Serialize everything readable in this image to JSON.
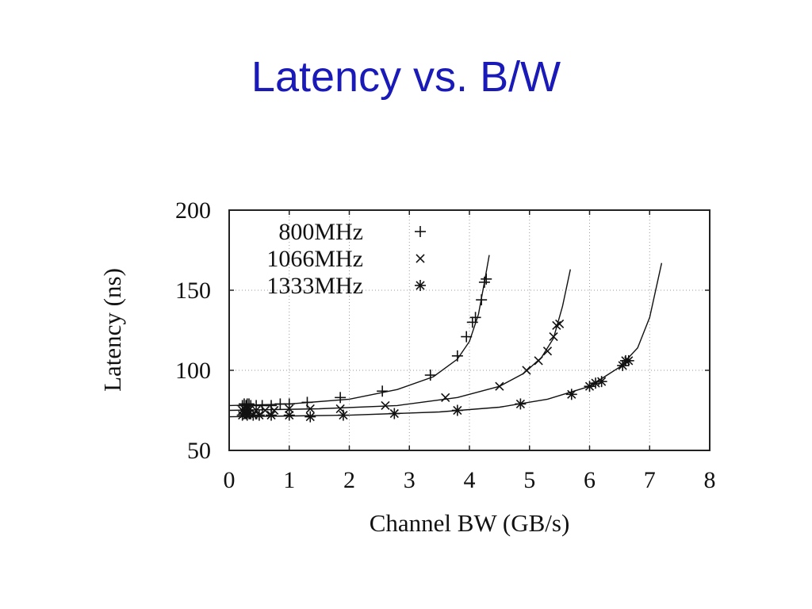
{
  "slide": {
    "title": "Latency vs. B/W",
    "title_color": "#1a1ab8"
  },
  "chart_data": {
    "type": "scatter",
    "xlabel": "Channel BW (GB/s)",
    "ylabel": "Latency (ns)",
    "xlim": [
      0,
      8
    ],
    "ylim": [
      50,
      200
    ],
    "x_ticks": [
      "0",
      "1",
      "2",
      "3",
      "4",
      "5",
      "6",
      "7",
      "8"
    ],
    "y_ticks": [
      "50",
      "100",
      "150",
      "200"
    ],
    "grid": true,
    "legend_position": "top-left",
    "series": [
      {
        "name": "800MHz",
        "marker": "plus",
        "points": [
          [
            0.22,
            78
          ],
          [
            0.25,
            79
          ],
          [
            0.28,
            78
          ],
          [
            0.3,
            79
          ],
          [
            0.33,
            79
          ],
          [
            0.36,
            78
          ],
          [
            0.45,
            78
          ],
          [
            0.55,
            78
          ],
          [
            0.7,
            78
          ],
          [
            0.85,
            79
          ],
          [
            1.0,
            79
          ],
          [
            1.3,
            80
          ],
          [
            1.85,
            83
          ],
          [
            2.55,
            87
          ],
          [
            3.35,
            97
          ],
          [
            3.8,
            109
          ],
          [
            3.95,
            121
          ],
          [
            4.05,
            130
          ],
          [
            4.1,
            133
          ],
          [
            4.2,
            144
          ],
          [
            4.25,
            155
          ],
          [
            4.28,
            157
          ]
        ],
        "fit": [
          [
            0,
            78
          ],
          [
            1.0,
            79
          ],
          [
            2.0,
            82
          ],
          [
            2.8,
            88
          ],
          [
            3.4,
            96
          ],
          [
            3.8,
            107
          ],
          [
            4.0,
            118
          ],
          [
            4.15,
            135
          ],
          [
            4.25,
            155
          ],
          [
            4.33,
            172
          ]
        ]
      },
      {
        "name": "1066MHz",
        "marker": "x",
        "points": [
          [
            0.22,
            75
          ],
          [
            0.25,
            76
          ],
          [
            0.28,
            75
          ],
          [
            0.3,
            76
          ],
          [
            0.35,
            76
          ],
          [
            0.45,
            75
          ],
          [
            0.6,
            75
          ],
          [
            0.75,
            75
          ],
          [
            1.0,
            76
          ],
          [
            1.35,
            76
          ],
          [
            1.85,
            76
          ],
          [
            2.6,
            78
          ],
          [
            3.6,
            83
          ],
          [
            4.5,
            90
          ],
          [
            4.95,
            100
          ],
          [
            5.15,
            106
          ],
          [
            5.3,
            112
          ],
          [
            5.4,
            121
          ],
          [
            5.45,
            128
          ],
          [
            5.5,
            129
          ]
        ],
        "fit": [
          [
            0,
            75
          ],
          [
            1.5,
            76
          ],
          [
            2.8,
            78
          ],
          [
            3.8,
            83
          ],
          [
            4.5,
            90
          ],
          [
            4.9,
            98
          ],
          [
            5.2,
            108
          ],
          [
            5.4,
            120
          ],
          [
            5.55,
            140
          ],
          [
            5.68,
            163
          ]
        ]
      },
      {
        "name": "1333MHz",
        "marker": "star",
        "points": [
          [
            0.22,
            72
          ],
          [
            0.25,
            73
          ],
          [
            0.28,
            73
          ],
          [
            0.3,
            72
          ],
          [
            0.33,
            73
          ],
          [
            0.4,
            72
          ],
          [
            0.5,
            72
          ],
          [
            0.7,
            72
          ],
          [
            1.0,
            72
          ],
          [
            1.35,
            71
          ],
          [
            1.9,
            72
          ],
          [
            2.75,
            73
          ],
          [
            3.8,
            75
          ],
          [
            4.85,
            79
          ],
          [
            5.7,
            85
          ],
          [
            6.0,
            90
          ],
          [
            6.1,
            92
          ],
          [
            6.2,
            93
          ],
          [
            6.55,
            103
          ],
          [
            6.6,
            106
          ],
          [
            6.65,
            106
          ]
        ],
        "fit": [
          [
            0,
            71
          ],
          [
            2.0,
            72
          ],
          [
            3.5,
            74
          ],
          [
            4.5,
            77
          ],
          [
            5.3,
            82
          ],
          [
            6.0,
            90
          ],
          [
            6.5,
            102
          ],
          [
            6.8,
            114
          ],
          [
            7.0,
            133
          ],
          [
            7.2,
            167
          ]
        ]
      }
    ]
  }
}
